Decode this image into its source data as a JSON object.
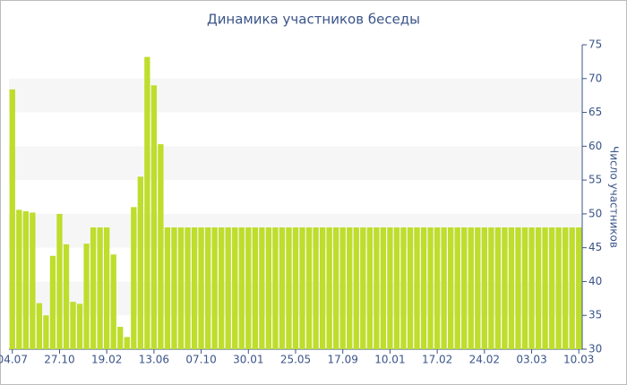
{
  "chart_data": {
    "type": "bar",
    "title": "Динамика участников беседы",
    "y_label": "Число участников",
    "categories": [
      "04.07",
      null,
      null,
      null,
      null,
      null,
      null,
      "27.10",
      null,
      null,
      null,
      null,
      null,
      null,
      "19.02",
      null,
      null,
      null,
      null,
      null,
      null,
      "13.06",
      null,
      null,
      null,
      null,
      null,
      null,
      "07.10",
      null,
      null,
      null,
      null,
      null,
      null,
      "30.01",
      null,
      null,
      null,
      null,
      null,
      null,
      "25.05",
      null,
      null,
      null,
      null,
      null,
      null,
      "17.09",
      null,
      null,
      null,
      null,
      null,
      null,
      "10.01",
      null,
      null,
      null,
      null,
      null,
      null,
      "17.02",
      null,
      null,
      null,
      null,
      null,
      null,
      "24.02",
      null,
      null,
      null,
      null,
      null,
      null,
      "03.03",
      null,
      null,
      null,
      null,
      null,
      null,
      "10.03"
    ],
    "values": [
      68.4,
      50.6,
      50.4,
      50.2,
      36.8,
      35,
      43.8,
      50,
      45.5,
      37,
      36.7,
      45.6,
      48,
      48,
      48,
      44,
      33.3,
      31.8,
      51,
      55.5,
      73.2,
      69,
      60.3,
      48,
      48,
      48,
      48,
      48,
      48,
      48,
      48,
      48,
      48,
      48,
      48,
      48,
      48,
      48,
      48,
      48,
      48,
      48,
      48,
      48,
      48,
      48,
      48,
      48,
      48,
      48,
      48,
      48,
      48,
      48,
      48,
      48,
      48,
      48,
      48,
      48,
      48,
      48,
      48,
      48,
      48,
      48,
      48,
      48,
      48,
      48,
      48,
      48,
      48,
      48,
      48,
      48,
      48,
      48,
      48,
      48,
      48,
      48,
      48,
      48,
      48
    ],
    "color": "#bedd2c",
    "ylim": [
      30,
      75
    ],
    "yticks": [
      30,
      35,
      40,
      45,
      50,
      55,
      60,
      65,
      70,
      75
    ],
    "y_axis_side": "right",
    "grid": true
  }
}
